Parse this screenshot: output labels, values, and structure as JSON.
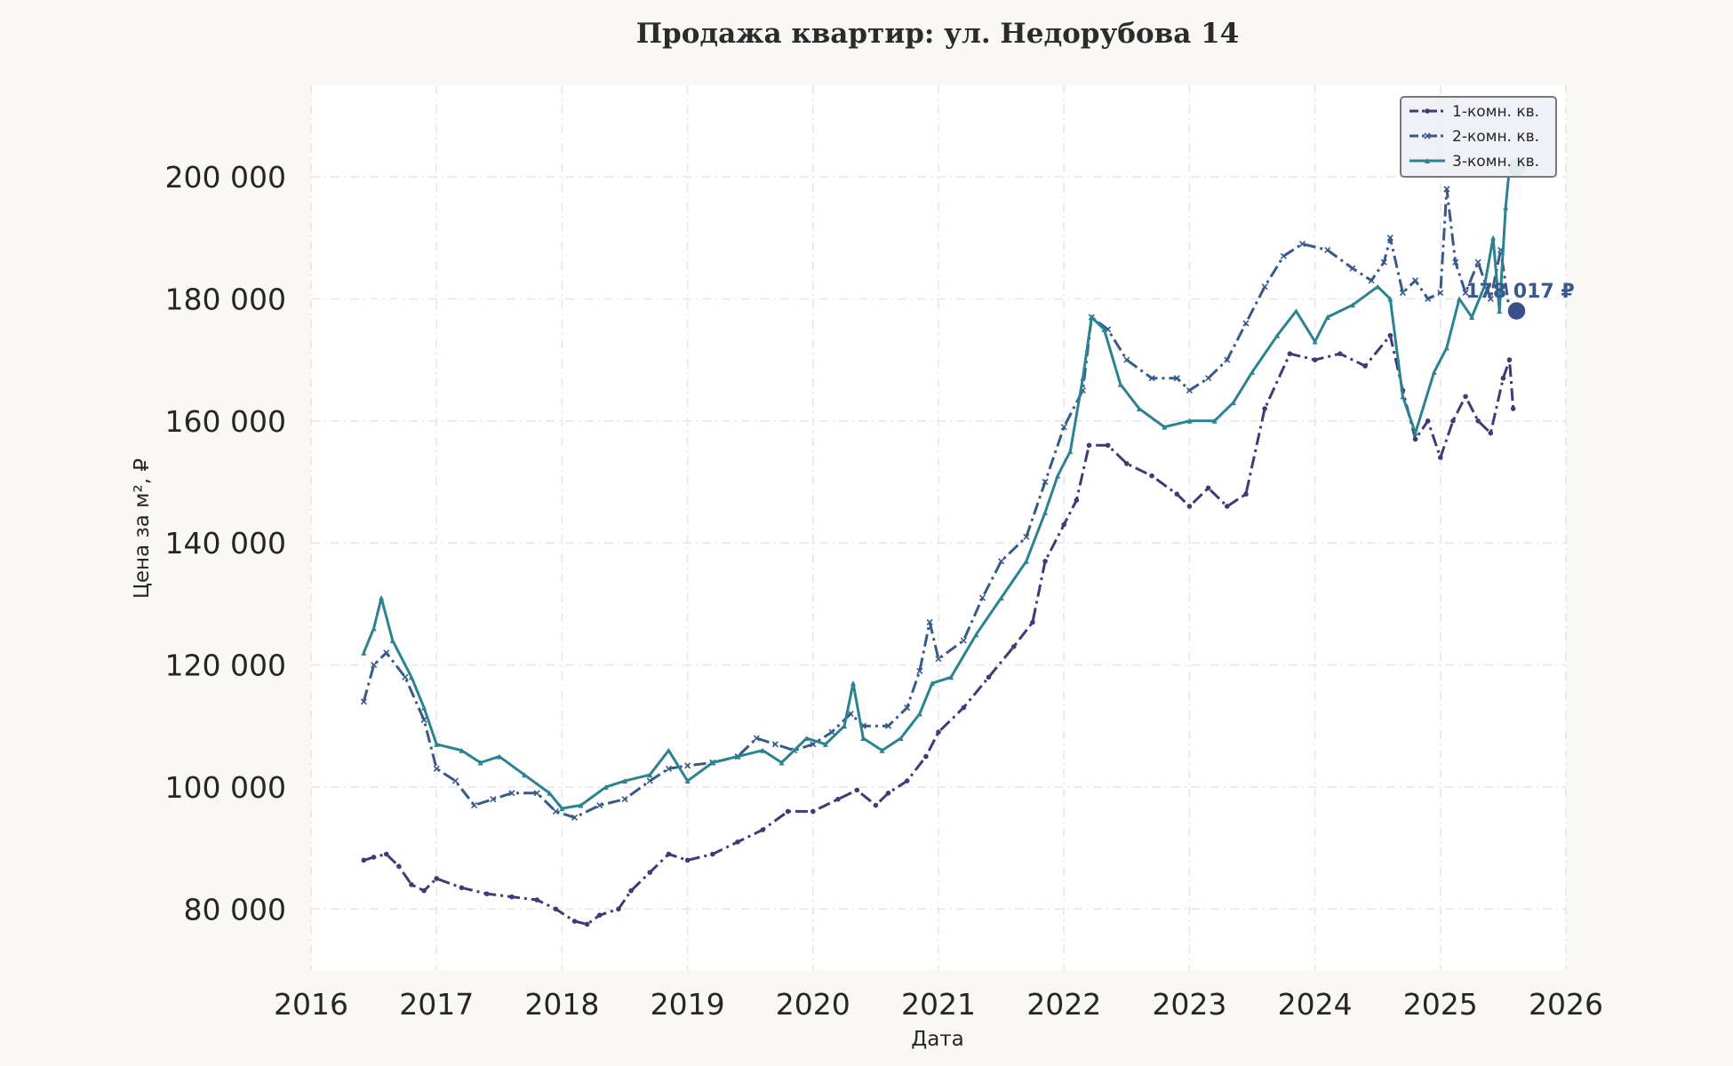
{
  "chart_data": {
    "type": "line",
    "title": "Продажа квартир: ул. Недорубова 14",
    "xlabel": "Дата",
    "ylabel": "Цена за м², ₽",
    "xlim": [
      2016.0,
      2026.0
    ],
    "ylim": [
      70000,
      215000
    ],
    "x_ticks": [
      2016,
      2017,
      2018,
      2019,
      2020,
      2021,
      2022,
      2023,
      2024,
      2025,
      2026
    ],
    "x_tick_labels": [
      "2016",
      "2017",
      "2018",
      "2019",
      "2020",
      "2021",
      "2022",
      "2023",
      "2024",
      "2025",
      "2026"
    ],
    "y_ticks": [
      80000,
      100000,
      120000,
      140000,
      160000,
      180000,
      200000
    ],
    "y_tick_labels": [
      "80 000",
      "100 000",
      "120 000",
      "140 000",
      "160 000",
      "180 000",
      "200 000"
    ],
    "grid": true,
    "legend_position": "top-right",
    "series": [
      {
        "name": "1-комн. кв.",
        "color": "#433878",
        "marker": "circle",
        "dash": "dashdot",
        "end_label": "",
        "points": [
          [
            2016.42,
            88000
          ],
          [
            2016.5,
            88500
          ],
          [
            2016.6,
            89000
          ],
          [
            2016.7,
            87000
          ],
          [
            2016.8,
            84000
          ],
          [
            2016.9,
            83000
          ],
          [
            2017.0,
            85000
          ],
          [
            2017.2,
            83500
          ],
          [
            2017.4,
            82500
          ],
          [
            2017.6,
            82000
          ],
          [
            2017.8,
            81500
          ],
          [
            2017.95,
            80000
          ],
          [
            2018.1,
            78000
          ],
          [
            2018.2,
            77500
          ],
          [
            2018.3,
            79000
          ],
          [
            2018.45,
            80000
          ],
          [
            2018.55,
            83000
          ],
          [
            2018.7,
            86000
          ],
          [
            2018.85,
            89000
          ],
          [
            2019.0,
            88000
          ],
          [
            2019.2,
            89000
          ],
          [
            2019.4,
            91000
          ],
          [
            2019.6,
            93000
          ],
          [
            2019.8,
            96000
          ],
          [
            2020.0,
            96000
          ],
          [
            2020.2,
            98000
          ],
          [
            2020.35,
            99500
          ],
          [
            2020.5,
            97000
          ],
          [
            2020.6,
            99000
          ],
          [
            2020.75,
            101000
          ],
          [
            2020.9,
            105000
          ],
          [
            2021.0,
            109000
          ],
          [
            2021.2,
            113000
          ],
          [
            2021.4,
            118000
          ],
          [
            2021.6,
            123000
          ],
          [
            2021.75,
            127000
          ],
          [
            2021.85,
            137000
          ],
          [
            2022.0,
            143000
          ],
          [
            2022.1,
            147000
          ],
          [
            2022.2,
            156000
          ],
          [
            2022.35,
            156000
          ],
          [
            2022.5,
            153000
          ],
          [
            2022.7,
            151000
          ],
          [
            2022.9,
            148000
          ],
          [
            2023.0,
            146000
          ],
          [
            2023.15,
            149000
          ],
          [
            2023.3,
            146000
          ],
          [
            2023.45,
            148000
          ],
          [
            2023.6,
            162000
          ],
          [
            2023.8,
            171000
          ],
          [
            2024.0,
            170000
          ],
          [
            2024.2,
            171000
          ],
          [
            2024.4,
            169000
          ],
          [
            2024.6,
            174000
          ],
          [
            2024.7,
            165000
          ],
          [
            2024.8,
            157000
          ],
          [
            2024.9,
            160000
          ],
          [
            2025.0,
            154000
          ],
          [
            2025.1,
            160000
          ],
          [
            2025.2,
            164000
          ],
          [
            2025.3,
            160000
          ],
          [
            2025.4,
            158000
          ],
          [
            2025.5,
            167000
          ],
          [
            2025.55,
            170000
          ],
          [
            2025.58,
            162000
          ]
        ]
      },
      {
        "name": "2-комн. кв.",
        "color": "#37598c",
        "marker": "x",
        "dash": "dashdot",
        "end_label": "178 017 ₽",
        "end_value": 178017,
        "points": [
          [
            2016.42,
            114000
          ],
          [
            2016.5,
            120000
          ],
          [
            2016.6,
            122000
          ],
          [
            2016.75,
            118000
          ],
          [
            2016.9,
            111000
          ],
          [
            2017.0,
            103000
          ],
          [
            2017.15,
            101000
          ],
          [
            2017.3,
            97000
          ],
          [
            2017.45,
            98000
          ],
          [
            2017.6,
            99000
          ],
          [
            2017.8,
            99000
          ],
          [
            2017.95,
            96000
          ],
          [
            2018.1,
            95000
          ],
          [
            2018.3,
            97000
          ],
          [
            2018.5,
            98000
          ],
          [
            2018.7,
            101000
          ],
          [
            2018.85,
            103000
          ],
          [
            2019.0,
            103500
          ],
          [
            2019.2,
            104000
          ],
          [
            2019.4,
            105000
          ],
          [
            2019.55,
            108000
          ],
          [
            2019.7,
            107000
          ],
          [
            2019.85,
            106000
          ],
          [
            2020.0,
            107000
          ],
          [
            2020.15,
            109000
          ],
          [
            2020.3,
            112000
          ],
          [
            2020.4,
            110000
          ],
          [
            2020.6,
            110000
          ],
          [
            2020.75,
            113000
          ],
          [
            2020.85,
            119000
          ],
          [
            2020.93,
            127000
          ],
          [
            2021.0,
            121000
          ],
          [
            2021.2,
            124000
          ],
          [
            2021.35,
            131000
          ],
          [
            2021.5,
            137000
          ],
          [
            2021.7,
            141000
          ],
          [
            2021.85,
            150000
          ],
          [
            2022.0,
            159000
          ],
          [
            2022.15,
            165000
          ],
          [
            2022.22,
            177000
          ],
          [
            2022.35,
            175000
          ],
          [
            2022.5,
            170000
          ],
          [
            2022.7,
            167000
          ],
          [
            2022.9,
            167000
          ],
          [
            2023.0,
            165000
          ],
          [
            2023.15,
            167000
          ],
          [
            2023.3,
            170000
          ],
          [
            2023.45,
            176000
          ],
          [
            2023.6,
            182000
          ],
          [
            2023.75,
            187000
          ],
          [
            2023.9,
            189000
          ],
          [
            2024.1,
            188000
          ],
          [
            2024.3,
            185000
          ],
          [
            2024.45,
            183000
          ],
          [
            2024.55,
            186000
          ],
          [
            2024.6,
            190000
          ],
          [
            2024.7,
            181000
          ],
          [
            2024.8,
            183000
          ],
          [
            2024.9,
            180000
          ],
          [
            2025.0,
            181000
          ],
          [
            2025.05,
            198000
          ],
          [
            2025.12,
            186000
          ],
          [
            2025.2,
            181000
          ],
          [
            2025.3,
            186000
          ],
          [
            2025.4,
            180000
          ],
          [
            2025.48,
            188000
          ],
          [
            2025.55,
            178017
          ]
        ]
      },
      {
        "name": "3-комн. кв.",
        "color": "#2b8391",
        "marker": "triangle",
        "dash": "solid",
        "end_label": "",
        "end_value": 201500,
        "points": [
          [
            2016.42,
            122000
          ],
          [
            2016.5,
            126000
          ],
          [
            2016.56,
            131000
          ],
          [
            2016.65,
            124000
          ],
          [
            2016.8,
            118000
          ],
          [
            2016.9,
            113000
          ],
          [
            2017.0,
            107000
          ],
          [
            2017.2,
            106000
          ],
          [
            2017.35,
            104000
          ],
          [
            2017.5,
            105000
          ],
          [
            2017.7,
            102000
          ],
          [
            2017.9,
            99000
          ],
          [
            2018.0,
            96500
          ],
          [
            2018.15,
            97000
          ],
          [
            2018.35,
            100000
          ],
          [
            2018.5,
            101000
          ],
          [
            2018.7,
            102000
          ],
          [
            2018.85,
            106000
          ],
          [
            2019.0,
            101000
          ],
          [
            2019.2,
            104000
          ],
          [
            2019.4,
            105000
          ],
          [
            2019.6,
            106000
          ],
          [
            2019.75,
            104000
          ],
          [
            2019.95,
            108000
          ],
          [
            2020.1,
            107000
          ],
          [
            2020.25,
            110000
          ],
          [
            2020.32,
            117000
          ],
          [
            2020.4,
            108000
          ],
          [
            2020.55,
            106000
          ],
          [
            2020.7,
            108000
          ],
          [
            2020.85,
            112000
          ],
          [
            2020.95,
            117000
          ],
          [
            2021.1,
            118000
          ],
          [
            2021.3,
            125000
          ],
          [
            2021.5,
            131000
          ],
          [
            2021.7,
            137000
          ],
          [
            2021.85,
            145000
          ],
          [
            2021.95,
            151000
          ],
          [
            2022.05,
            155000
          ],
          [
            2022.15,
            167000
          ],
          [
            2022.22,
            177000
          ],
          [
            2022.32,
            175000
          ],
          [
            2022.45,
            166000
          ],
          [
            2022.6,
            162000
          ],
          [
            2022.8,
            159000
          ],
          [
            2023.0,
            160000
          ],
          [
            2023.2,
            160000
          ],
          [
            2023.35,
            163000
          ],
          [
            2023.5,
            168000
          ],
          [
            2023.7,
            174000
          ],
          [
            2023.85,
            178000
          ],
          [
            2024.0,
            173000
          ],
          [
            2024.1,
            177000
          ],
          [
            2024.3,
            179000
          ],
          [
            2024.5,
            182000
          ],
          [
            2024.6,
            180000
          ],
          [
            2024.7,
            164000
          ],
          [
            2024.8,
            158000
          ],
          [
            2024.95,
            168000
          ],
          [
            2025.05,
            172000
          ],
          [
            2025.15,
            180000
          ],
          [
            2025.25,
            177000
          ],
          [
            2025.35,
            182000
          ],
          [
            2025.42,
            190000
          ],
          [
            2025.47,
            178000
          ],
          [
            2025.52,
            195000
          ],
          [
            2025.55,
            201500
          ]
        ]
      }
    ]
  }
}
